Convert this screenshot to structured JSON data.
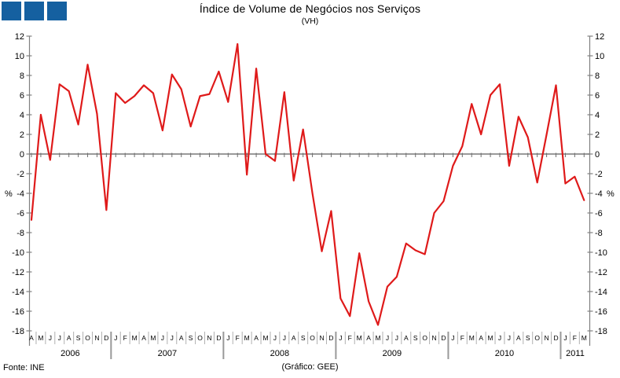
{
  "logo": {
    "squares": 3,
    "color": "#1560a0"
  },
  "footer": {
    "source": "Fonte: INE",
    "credit": "(Gráfico: GEE)"
  },
  "chart_data": {
    "type": "line",
    "title": "Índice de Volume de Negócios nos Serviços",
    "subtitle": "(VH)",
    "unit_label_left": "%",
    "unit_label_right": "%",
    "ylim": [
      -18,
      12
    ],
    "ytick_step": 2,
    "grid": "zero-line-only",
    "legend": "none",
    "line_color": "#df1a1a",
    "axis_color": "#808080",
    "zero_line_color": "#8c8c8c",
    "series_name": "VH",
    "years": [
      {
        "label": "2006",
        "months": [
          "A",
          "M",
          "J",
          "J",
          "A",
          "S",
          "O",
          "N",
          "D"
        ],
        "values": [
          -6.7,
          4.0,
          -0.6,
          7.1,
          6.4,
          3.0,
          9.1,
          4.1,
          -5.7
        ]
      },
      {
        "label": "2007",
        "months": [
          "J",
          "F",
          "M",
          "A",
          "M",
          "J",
          "J",
          "A",
          "S",
          "O",
          "N",
          "D"
        ],
        "values": [
          6.2,
          5.2,
          5.9,
          7.0,
          6.2,
          2.4,
          8.1,
          6.6,
          2.8,
          5.9,
          6.1,
          8.4
        ]
      },
      {
        "label": "2008",
        "months": [
          "J",
          "F",
          "M",
          "A",
          "M",
          "J",
          "J",
          "A",
          "S",
          "O",
          "N",
          "D"
        ],
        "values": [
          5.3,
          11.2,
          -2.1,
          8.7,
          0.0,
          -0.7,
          6.3,
          -2.7,
          2.5,
          -4.0,
          -9.9,
          -5.8
        ]
      },
      {
        "label": "2009",
        "months": [
          "J",
          "F",
          "M",
          "A",
          "M",
          "J",
          "J",
          "A",
          "S",
          "O",
          "N",
          "D"
        ],
        "values": [
          -14.7,
          -16.5,
          -10.1,
          -15.0,
          -17.4,
          -13.5,
          -12.5,
          -9.1,
          -9.8,
          -10.2,
          -6.0,
          -4.8
        ]
      },
      {
        "label": "2010",
        "months": [
          "J",
          "F",
          "M",
          "A",
          "M",
          "J",
          "J",
          "A",
          "S",
          "O",
          "N",
          "D"
        ],
        "values": [
          -1.2,
          0.8,
          5.1,
          2.0,
          6.0,
          7.1,
          -1.2,
          3.8,
          1.7,
          -2.9,
          2.0,
          7.0
        ]
      },
      {
        "label": "2011",
        "months": [
          "J",
          "F",
          "M"
        ],
        "values": [
          -3.0,
          -2.3,
          -4.7
        ]
      }
    ]
  }
}
